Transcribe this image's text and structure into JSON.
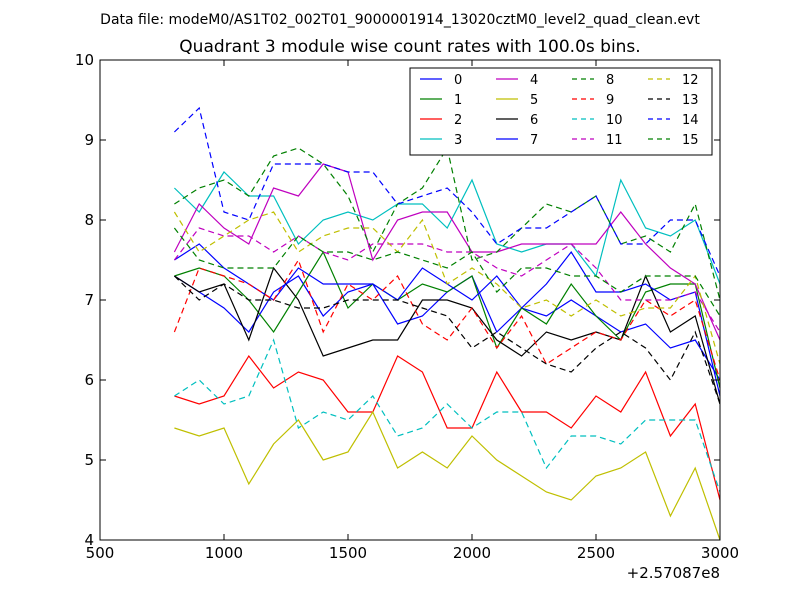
{
  "suptitle": "Data file: modeM0/AS1T02_002T01_9000001914_13020cztM0_level2_quad_clean.evt",
  "chart_data": {
    "type": "line",
    "title": "Quadrant 3 module wise count rates with 100.0s bins.",
    "xlabel": "",
    "ylabel": "",
    "x_offset_label": "+2.57087e8",
    "xlim": [
      500,
      3000
    ],
    "ylim": [
      4,
      10
    ],
    "xticks": [
      500,
      1000,
      1500,
      2000,
      2500,
      3000
    ],
    "yticks": [
      4,
      5,
      6,
      7,
      8,
      9,
      10
    ],
    "grid": false,
    "legend_position": "top-right",
    "x": [
      800,
      900,
      1000,
      1100,
      1200,
      1300,
      1400,
      1500,
      1600,
      1700,
      1800,
      1900,
      2000,
      2100,
      2200,
      2300,
      2400,
      2500,
      2600,
      2700,
      2800,
      2900,
      3000
    ],
    "series": [
      {
        "name": "0",
        "color": "#0000ff",
        "dash": "solid",
        "values": [
          7.3,
          7.1,
          6.9,
          6.6,
          7.1,
          7.3,
          6.8,
          7.1,
          7.2,
          6.7,
          6.8,
          7.1,
          7.3,
          6.6,
          6.9,
          6.8,
          7.0,
          6.8,
          6.6,
          6.7,
          6.4,
          6.5,
          6.0
        ]
      },
      {
        "name": "1",
        "color": "#008000",
        "dash": "solid",
        "values": [
          7.3,
          7.4,
          7.3,
          7.0,
          6.6,
          7.1,
          7.6,
          6.9,
          7.2,
          7.0,
          7.2,
          7.1,
          7.3,
          6.4,
          6.9,
          6.7,
          7.2,
          6.8,
          6.5,
          7.1,
          7.2,
          7.2,
          5.9
        ]
      },
      {
        "name": "2",
        "color": "#ff0000",
        "dash": "solid",
        "values": [
          5.8,
          5.7,
          5.8,
          6.3,
          5.9,
          6.1,
          6.0,
          5.6,
          5.6,
          6.3,
          6.1,
          5.4,
          5.4,
          6.1,
          5.6,
          5.6,
          5.4,
          5.8,
          5.6,
          6.1,
          5.3,
          5.7,
          4.5
        ]
      },
      {
        "name": "3",
        "color": "#00bfbf",
        "dash": "solid",
        "values": [
          8.4,
          8.1,
          8.6,
          8.3,
          8.3,
          7.7,
          8.0,
          8.1,
          8.0,
          8.2,
          8.2,
          7.9,
          8.5,
          7.7,
          7.6,
          7.7,
          7.7,
          7.3,
          8.5,
          7.9,
          7.8,
          8.0,
          7.2
        ]
      },
      {
        "name": "4",
        "color": "#bf00bf",
        "dash": "solid",
        "values": [
          7.6,
          8.2,
          7.9,
          7.7,
          8.4,
          8.3,
          8.7,
          8.6,
          7.5,
          8.0,
          8.1,
          8.1,
          7.6,
          7.6,
          7.7,
          7.7,
          7.7,
          7.7,
          8.1,
          7.7,
          7.4,
          7.2,
          6.5
        ]
      },
      {
        "name": "5",
        "color": "#bfbf00",
        "dash": "solid",
        "values": [
          5.4,
          5.3,
          5.4,
          4.7,
          5.2,
          5.5,
          5.0,
          5.1,
          5.6,
          4.9,
          5.1,
          4.9,
          5.3,
          5.0,
          4.8,
          4.6,
          4.5,
          4.8,
          4.9,
          5.1,
          4.3,
          4.9,
          4.0
        ]
      },
      {
        "name": "6",
        "color": "#000000",
        "dash": "solid",
        "values": [
          7.3,
          7.1,
          7.2,
          6.5,
          7.4,
          7.0,
          6.3,
          6.4,
          6.5,
          6.5,
          7.0,
          7.0,
          6.9,
          6.5,
          6.3,
          6.6,
          6.5,
          6.6,
          6.5,
          7.3,
          6.6,
          6.8,
          5.7
        ]
      },
      {
        "name": "7",
        "color": "#0000ff",
        "dash": "solid",
        "values": [
          7.5,
          7.7,
          7.4,
          7.2,
          7.0,
          7.4,
          7.2,
          7.2,
          7.2,
          7.0,
          7.4,
          7.2,
          7.0,
          7.3,
          6.9,
          7.2,
          7.6,
          7.1,
          7.1,
          7.2,
          7.0,
          7.1,
          5.8
        ]
      },
      {
        "name": "8",
        "color": "#008000",
        "dash": "dashed",
        "values": [
          8.2,
          8.4,
          8.5,
          8.3,
          8.8,
          8.9,
          8.7,
          8.3,
          7.6,
          8.2,
          8.4,
          8.9,
          7.5,
          7.6,
          7.9,
          8.2,
          8.1,
          8.3,
          7.7,
          7.8,
          7.6,
          8.2,
          7.0
        ]
      },
      {
        "name": "9",
        "color": "#ff0000",
        "dash": "dashed",
        "values": [
          6.6,
          7.4,
          7.3,
          7.2,
          7.0,
          7.5,
          6.6,
          7.2,
          7.0,
          7.3,
          6.7,
          6.5,
          6.9,
          6.4,
          6.8,
          6.2,
          6.4,
          6.6,
          6.5,
          7.0,
          6.8,
          7.0,
          6.0
        ]
      },
      {
        "name": "10",
        "color": "#00bfbf",
        "dash": "dashed",
        "values": [
          5.8,
          6.0,
          5.7,
          5.8,
          6.5,
          5.4,
          5.6,
          5.5,
          5.8,
          5.3,
          5.4,
          5.7,
          5.4,
          5.6,
          5.6,
          4.9,
          5.3,
          5.3,
          5.2,
          5.5,
          5.5,
          5.5,
          4.6
        ]
      },
      {
        "name": "11",
        "color": "#bf00bf",
        "dash": "dashed",
        "values": [
          7.5,
          7.9,
          7.8,
          7.8,
          7.6,
          7.8,
          7.6,
          7.5,
          7.7,
          7.7,
          7.7,
          7.6,
          7.6,
          7.4,
          7.3,
          7.5,
          7.7,
          7.4,
          7.0,
          7.0,
          7.0,
          7.1,
          6.6
        ]
      },
      {
        "name": "12",
        "color": "#bfbf00",
        "dash": "dashed",
        "values": [
          8.1,
          7.6,
          7.8,
          8.0,
          8.1,
          7.6,
          7.8,
          7.9,
          7.9,
          7.6,
          8.0,
          7.2,
          7.4,
          7.2,
          6.9,
          7.0,
          6.8,
          7.0,
          6.8,
          6.9,
          6.9,
          7.3,
          6.2
        ]
      },
      {
        "name": "13",
        "color": "#000000",
        "dash": "dashed",
        "values": [
          7.3,
          7.0,
          7.2,
          7.0,
          7.0,
          6.9,
          6.9,
          7.0,
          7.0,
          7.0,
          6.9,
          6.8,
          6.4,
          6.6,
          6.4,
          6.2,
          6.1,
          6.4,
          6.6,
          6.4,
          6.0,
          6.6,
          5.7
        ]
      },
      {
        "name": "14",
        "color": "#0000ff",
        "dash": "dashed",
        "values": [
          9.1,
          9.4,
          8.1,
          8.0,
          8.7,
          8.7,
          8.7,
          8.6,
          8.6,
          8.2,
          8.3,
          8.4,
          8.1,
          7.7,
          7.9,
          7.9,
          8.1,
          8.3,
          7.7,
          7.7,
          8.0,
          8.0,
          7.3
        ]
      },
      {
        "name": "15",
        "color": "#008000",
        "dash": "dashed",
        "values": [
          7.9,
          7.5,
          7.4,
          7.4,
          7.4,
          7.8,
          7.6,
          7.6,
          7.5,
          7.6,
          7.5,
          7.4,
          7.6,
          7.1,
          7.4,
          7.4,
          7.3,
          7.3,
          7.1,
          7.3,
          7.3,
          7.3,
          6.8
        ]
      }
    ]
  }
}
